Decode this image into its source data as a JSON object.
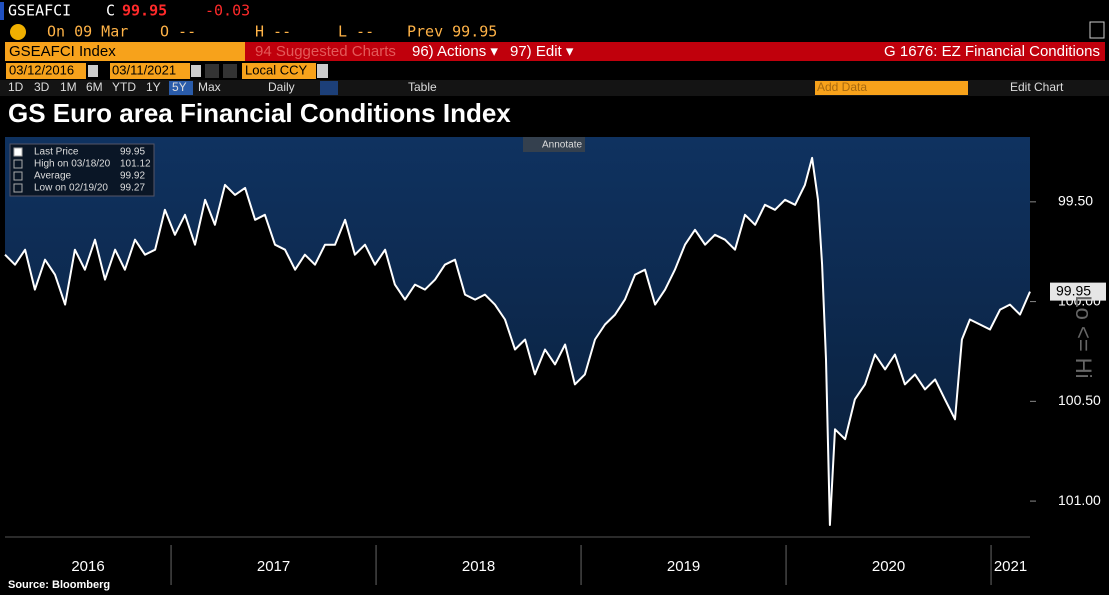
{
  "header": {
    "ticker": "GSEAFCI",
    "close_label": "C",
    "price": "99.95",
    "change": "-0.03",
    "date": "On 09 Mar",
    "open": "O --",
    "high": "H --",
    "low": "L --",
    "prev": "Prev 99.95",
    "security": "GSEAFCI Index",
    "suggested": "94 Suggested Charts",
    "actions": "96) Actions ▾",
    "edit": "97) Edit ▾",
    "page": "G 1676: EZ Financial Conditions",
    "start_date": "03/12/2016",
    "end_date": "03/11/2021",
    "currency": "Local CCY",
    "periods": [
      "1D",
      "3D",
      "1M",
      "6M",
      "YTD",
      "1Y",
      "5Y",
      "Max"
    ],
    "active_period": "5Y",
    "frequency": "Daily",
    "table": "Table",
    "add_data": "Add Data",
    "edit_chart": "Edit Chart"
  },
  "chart_data": {
    "type": "line",
    "title": "GS Euro area Financial Conditions Index",
    "annotate": "Annotate",
    "source": "Source: Bloomberg",
    "axis_note": "Lo <= Hi",
    "xlim": [
      2016.19,
      2021.19
    ],
    "xticks": [
      2016,
      2017,
      2018,
      2019,
      2020,
      2021
    ],
    "ylim": [
      99.175,
      101.18
    ],
    "invert_y": true,
    "yticks": [
      {
        "value": 99.5,
        "label": "99.50"
      },
      {
        "value": 100,
        "label": "100.00"
      },
      {
        "value": 100.5,
        "label": "100.50"
      },
      {
        "value": 101,
        "label": "101.00"
      }
    ],
    "grid": false,
    "legend": "top-left",
    "last_value": 99.95,
    "stats": [
      {
        "label": "High on 03/18/20",
        "value": 101.12
      },
      {
        "label": "Average",
        "value": 99.92
      },
      {
        "label": "Low on 02/19/20",
        "value": 99.27
      }
    ],
    "series": [
      {
        "name": "Last Price",
        "color": "#ffffff",
        "x": [
          2016.19,
          2016.239,
          2016.288,
          2016.336,
          2016.385,
          2016.434,
          2016.483,
          2016.531,
          2016.58,
          2016.629,
          2016.678,
          2016.727,
          2016.775,
          2016.824,
          2016.873,
          2016.922,
          2016.97,
          2017.019,
          2017.068,
          2017.117,
          2017.166,
          2017.214,
          2017.263,
          2017.312,
          2017.361,
          2017.41,
          2017.458,
          2017.507,
          2017.556,
          2017.605,
          2017.653,
          2017.702,
          2017.751,
          2017.8,
          2017.849,
          2017.897,
          2017.946,
          2017.995,
          2018.044,
          2018.092,
          2018.141,
          2018.19,
          2018.239,
          2018.288,
          2018.336,
          2018.385,
          2018.434,
          2018.483,
          2018.531,
          2018.58,
          2018.629,
          2018.678,
          2018.727,
          2018.775,
          2018.824,
          2018.873,
          2018.922,
          2018.97,
          2019.019,
          2019.068,
          2019.117,
          2019.166,
          2019.214,
          2019.263,
          2019.312,
          2019.361,
          2019.41,
          2019.458,
          2019.507,
          2019.556,
          2019.605,
          2019.653,
          2019.702,
          2019.751,
          2019.8,
          2019.849,
          2019.897,
          2019.946,
          2019.995,
          2020.044,
          2020.092,
          2020.127,
          2020.156,
          2020.176,
          2020.195,
          2020.214,
          2020.239,
          2020.288,
          2020.336,
          2020.385,
          2020.434,
          2020.483,
          2020.531,
          2020.58,
          2020.629,
          2020.678,
          2020.727,
          2020.775,
          2020.824,
          2020.858,
          2020.897,
          2020.946,
          2020.995,
          2021.044,
          2021.092,
          2021.141,
          2021.19
        ],
        "values": [
          99.765,
          99.815,
          99.74,
          99.94,
          99.79,
          99.865,
          100.015,
          99.74,
          99.84,
          99.69,
          99.89,
          99.74,
          99.84,
          99.69,
          99.765,
          99.74,
          99.54,
          99.665,
          99.565,
          99.715,
          99.49,
          99.615,
          99.415,
          99.465,
          99.43,
          99.59,
          99.565,
          99.715,
          99.74,
          99.84,
          99.765,
          99.815,
          99.715,
          99.715,
          99.59,
          99.765,
          99.715,
          99.815,
          99.74,
          99.915,
          99.99,
          99.915,
          99.94,
          99.89,
          99.815,
          99.79,
          99.965,
          99.99,
          99.965,
          100.015,
          100.09,
          100.24,
          100.19,
          100.365,
          100.24,
          100.315,
          100.215,
          100.415,
          100.365,
          100.19,
          100.115,
          100.065,
          99.99,
          99.865,
          99.84,
          100.015,
          99.94,
          99.84,
          99.715,
          99.64,
          99.715,
          99.665,
          99.69,
          99.74,
          99.565,
          99.615,
          99.515,
          99.54,
          99.49,
          99.515,
          99.415,
          99.28,
          99.49,
          99.815,
          100.29,
          101.12,
          100.64,
          100.69,
          100.49,
          100.415,
          100.265,
          100.34,
          100.265,
          100.415,
          100.365,
          100.44,
          100.39,
          100.49,
          100.59,
          100.19,
          100.09,
          100.115,
          100.14,
          100.04,
          100.015,
          100.065,
          99.95
        ]
      }
    ]
  }
}
